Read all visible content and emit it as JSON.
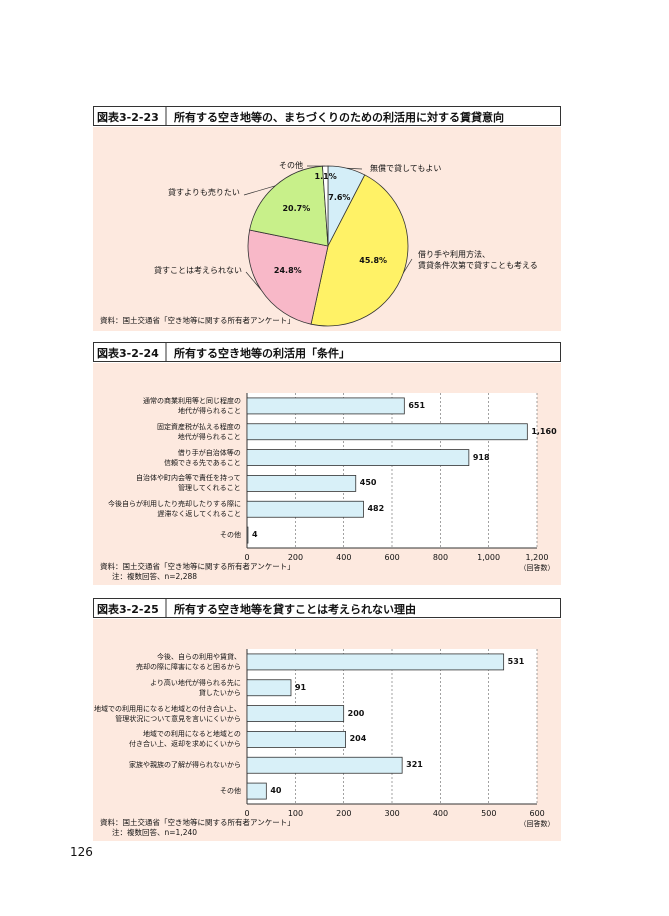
{
  "page_number": "126",
  "chart_data": [
    {
      "type": "pie",
      "label": "図表3-2-23",
      "title": "所有する空き地等の、まちづくりのための利活用に対する賃貸意向",
      "categories": [
        "無償で貸してもよい",
        "借り手や利用方法、\n賃貸条件次第で貸すことも考える",
        "貸すことは考えられない",
        "貸すよりも売りたい",
        "その他"
      ],
      "values": [
        7.6,
        45.8,
        24.8,
        20.7,
        1.1
      ],
      "value_labels": [
        "7.6%",
        "45.8%",
        "24.8%",
        "20.7%",
        "1.1%"
      ],
      "colors": [
        "#d4eef8",
        "#fff266",
        "#f8b8c8",
        "#c8f08a",
        "#ffffff"
      ],
      "source": "資料：国土交通省「空き地等に関する所有者アンケート」"
    },
    {
      "type": "bar",
      "orientation": "horizontal",
      "label": "図表3-2-24",
      "title": "所有する空き地等の利活用「条件」",
      "categories": [
        "通常の商業利用等と同じ程度の\n地代が得られること",
        "固定資産税が払える程度の\n地代が得られること",
        "借り手が自治体等の\n信頼できる先であること",
        "自治体や町内会等で責任を持って\n管理してくれること",
        "今後自らが利用したり売却したりする際に\n遅滞なく返してくれること",
        "その他"
      ],
      "values": [
        651,
        1160,
        918,
        450,
        482,
        4
      ],
      "value_labels": [
        "651",
        "1,160",
        "918",
        "450",
        "482",
        "4"
      ],
      "color": "#d8f0f8",
      "xlim": [
        0,
        1200
      ],
      "xticks": [
        0,
        200,
        400,
        600,
        800,
        {
          "value": 1000,
          "label": "1,000"
        },
        {
          "value": 1200,
          "label": "1,200"
        }
      ],
      "x_label": "（回答数）",
      "grid": true,
      "source": "資料：国土交通省「空き地等に関する所有者アンケート」",
      "note": "注：複数回答、n=2,288"
    },
    {
      "type": "bar",
      "orientation": "horizontal",
      "label": "図表3-2-25",
      "title": "所有する空き地等を貸すことは考えられない理由",
      "categories": [
        "今後、自らの利用や賃貸、\n売却の際に障害になると困るから",
        "より高い地代が得られる先に\n貸したいから",
        "地域での利用用になると地域との付き合い上、\n管理状況について意見を言いにくいから",
        "地域での利用になると地域との\n付き合い上、返却を求めにくいから",
        "家族や親族の了解が得られないから",
        "その他"
      ],
      "values": [
        531,
        91,
        200,
        204,
        321,
        40
      ],
      "color": "#d8f0f8",
      "xlim": [
        0,
        600
      ],
      "xticks": [
        0,
        100,
        200,
        300,
        400,
        500,
        600
      ],
      "x_label": "（回答数）",
      "grid": true,
      "source": "資料：国土交通省「空き地等に関する所有者アンケート」",
      "note": "注：複数回答、n=1,240"
    }
  ]
}
